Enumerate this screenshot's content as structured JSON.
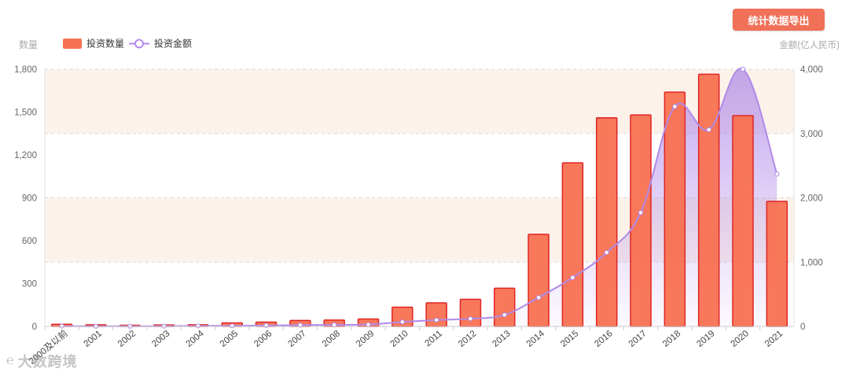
{
  "toolbar": {
    "export_label": "统计数据导出"
  },
  "watermark": {
    "logo": "℮",
    "text": "大数跨境"
  },
  "chart_data": {
    "type": "bar+line",
    "title": "",
    "y_left_label": "数量",
    "y_right_label": "金额(亿人民币)",
    "y_left_range": [
      0,
      1800
    ],
    "y_left_ticks": [
      "0",
      "300",
      "600",
      "900",
      "1,200",
      "1,500",
      "1,800"
    ],
    "y_right_range": [
      0,
      4000
    ],
    "y_right_ticks": [
      "0",
      "1,000",
      "2,000",
      "3,000",
      "4,000"
    ],
    "grid": "dashed horizontal",
    "legend_position": "top-left",
    "categories": [
      "2000及以前",
      "2001",
      "2002",
      "2003",
      "2004",
      "2005",
      "2006",
      "2007",
      "2008",
      "2009",
      "2010",
      "2011",
      "2012",
      "2013",
      "2014",
      "2015",
      "2016",
      "2017",
      "2018",
      "2019",
      "2020",
      "2021"
    ],
    "series": [
      {
        "name": "投资数量",
        "type": "bar",
        "axis": "left",
        "color": "#f87152",
        "border": "#e02525",
        "values": [
          15,
          12,
          8,
          10,
          12,
          25,
          30,
          42,
          45,
          52,
          135,
          165,
          190,
          268,
          645,
          1145,
          1460,
          1480,
          1640,
          1765,
          1475,
          875
        ]
      },
      {
        "name": "投资金额",
        "type": "line",
        "axis": "right",
        "color": "#b08ae8",
        "values": [
          5,
          3,
          3,
          5,
          8,
          10,
          15,
          20,
          25,
          30,
          70,
          100,
          120,
          180,
          450,
          760,
          1150,
          1770,
          3420,
          3060,
          4000,
          2370
        ]
      }
    ]
  }
}
